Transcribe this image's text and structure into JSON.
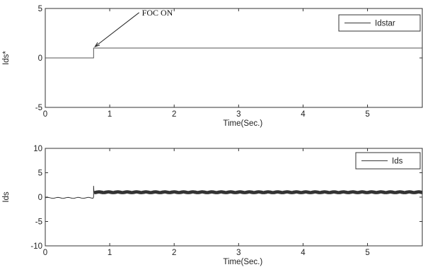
{
  "chart_data": [
    {
      "type": "line",
      "xlabel": "Time(Sec.)",
      "ylabel": "Ids*",
      "xlim": [
        0,
        5.85
      ],
      "ylim": [
        -5,
        5
      ],
      "xticks": [
        "0",
        "1",
        "2",
        "3",
        "4",
        "5"
      ],
      "yticks": [
        "-5",
        "0",
        "5"
      ],
      "grid": false,
      "legend": "top-right",
      "series": [
        {
          "name": "Idstar",
          "x": [
            0,
            0.75,
            0.75,
            5.85
          ],
          "y": [
            0,
            0,
            1,
            1
          ]
        }
      ],
      "annotation": {
        "text": "FOC ON",
        "point": [
          0.75,
          1
        ],
        "text_at": [
          1.5,
          4.3
        ]
      }
    },
    {
      "type": "line",
      "xlabel": "Time(Sec.)",
      "ylabel": "Ids",
      "xlim": [
        0,
        5.85
      ],
      "ylim": [
        -10,
        10
      ],
      "xticks": [
        "0",
        "1",
        "2",
        "3",
        "4",
        "5"
      ],
      "yticks": [
        "-10",
        "-5",
        "0",
        "5",
        "10"
      ],
      "grid": false,
      "legend": "top-right",
      "series": [
        {
          "name": "Ids",
          "x": [
            0,
            0.75,
            0.75,
            5.85
          ],
          "y": [
            0,
            0,
            1,
            1
          ],
          "spike": [
            0.75,
            2.3
          ],
          "ripple": 0.4
        }
      ]
    }
  ]
}
